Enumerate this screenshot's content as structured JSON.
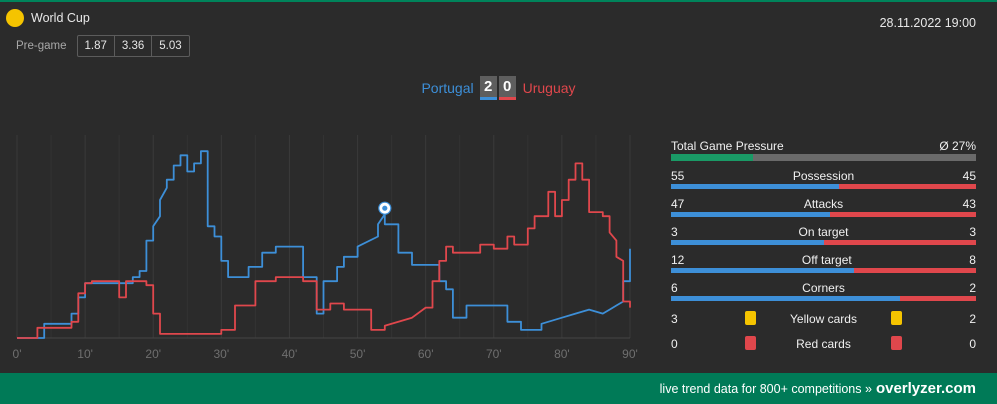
{
  "header": {
    "league": "World Cup",
    "datetime": "28.11.2022 19:00",
    "pregame_label": "Pre-game",
    "odds": [
      "1.87",
      "3.36",
      "5.03"
    ]
  },
  "match": {
    "home_team": "Portugal",
    "away_team": "Uruguay",
    "home_score": "2",
    "away_score": "0"
  },
  "chart_data": {
    "type": "line",
    "title": "",
    "xlabel": "",
    "ylabel": "",
    "x_ticks": [
      "0'",
      "10'",
      "20'",
      "30'",
      "40'",
      "50'",
      "60'",
      "70'",
      "80'",
      "90'"
    ],
    "xlim": [
      0,
      90
    ],
    "ylim": [
      0,
      100
    ],
    "grid": "vertical",
    "series": [
      {
        "name": "Portugal",
        "color": "#3d8fd8",
        "points": [
          [
            0,
            0
          ],
          [
            4,
            0
          ],
          [
            4,
            7
          ],
          [
            8,
            7
          ],
          [
            8,
            12
          ],
          [
            9,
            12
          ],
          [
            9,
            20
          ],
          [
            10,
            20
          ],
          [
            10,
            27
          ],
          [
            13,
            27
          ],
          [
            13,
            27
          ],
          [
            17,
            27
          ],
          [
            17,
            30
          ],
          [
            18,
            30
          ],
          [
            18,
            33
          ],
          [
            19,
            33
          ],
          [
            19,
            48
          ],
          [
            20,
            48
          ],
          [
            20,
            55
          ],
          [
            21,
            60
          ],
          [
            21,
            68
          ],
          [
            22,
            74
          ],
          [
            22,
            78
          ],
          [
            23,
            78
          ],
          [
            23,
            85
          ],
          [
            24,
            85
          ],
          [
            24,
            90
          ],
          [
            25,
            90
          ],
          [
            25,
            82
          ],
          [
            26,
            82
          ],
          [
            26,
            86
          ],
          [
            27,
            86
          ],
          [
            27,
            92
          ],
          [
            28,
            92
          ],
          [
            28,
            55
          ],
          [
            29,
            55
          ],
          [
            29,
            50
          ],
          [
            30,
            50
          ],
          [
            30,
            38
          ],
          [
            31,
            38
          ],
          [
            31,
            30
          ],
          [
            34,
            30
          ],
          [
            34,
            35
          ],
          [
            36,
            35
          ],
          [
            36,
            42
          ],
          [
            38,
            42
          ],
          [
            38,
            45
          ],
          [
            42,
            45
          ],
          [
            42,
            30
          ],
          [
            44,
            30
          ],
          [
            44,
            12
          ],
          [
            45,
            12
          ],
          [
            45,
            28
          ],
          [
            47,
            28
          ],
          [
            47,
            35
          ],
          [
            48,
            35
          ],
          [
            48,
            40
          ],
          [
            50,
            40
          ],
          [
            50,
            45
          ],
          [
            53,
            50
          ],
          [
            53,
            56
          ],
          [
            54,
            61
          ],
          [
            54,
            56
          ],
          [
            56,
            56
          ],
          [
            56,
            42
          ],
          [
            58,
            42
          ],
          [
            58,
            36
          ],
          [
            62,
            36
          ],
          [
            62,
            28
          ],
          [
            63,
            28
          ],
          [
            63,
            24
          ],
          [
            64,
            24
          ],
          [
            64,
            10
          ],
          [
            66,
            10
          ],
          [
            66,
            16
          ],
          [
            72,
            16
          ],
          [
            72,
            8
          ],
          [
            74,
            8
          ],
          [
            74,
            4
          ],
          [
            77,
            4
          ],
          [
            77,
            7
          ],
          [
            80,
            10
          ],
          [
            82,
            12
          ],
          [
            84,
            14
          ],
          [
            86,
            12
          ],
          [
            87,
            14
          ],
          [
            88,
            16
          ],
          [
            89,
            18
          ],
          [
            89,
            28
          ],
          [
            90,
            28
          ],
          [
            90,
            44
          ]
        ]
      },
      {
        "name": "Uruguay",
        "color": "#e0474c",
        "points": [
          [
            0,
            0
          ],
          [
            3,
            0
          ],
          [
            3,
            5
          ],
          [
            5,
            5
          ],
          [
            5,
            5
          ],
          [
            8,
            5
          ],
          [
            8,
            8
          ],
          [
            9,
            8
          ],
          [
            9,
            22
          ],
          [
            10,
            22
          ],
          [
            10,
            27
          ],
          [
            11,
            27
          ],
          [
            11,
            28
          ],
          [
            15,
            28
          ],
          [
            15,
            20
          ],
          [
            16,
            20
          ],
          [
            16,
            28
          ],
          [
            19,
            28
          ],
          [
            19,
            26
          ],
          [
            20,
            26
          ],
          [
            20,
            12
          ],
          [
            21,
            12
          ],
          [
            21,
            2
          ],
          [
            26,
            2
          ],
          [
            26,
            2
          ],
          [
            30,
            2
          ],
          [
            30,
            4
          ],
          [
            32,
            4
          ],
          [
            32,
            16
          ],
          [
            35,
            16
          ],
          [
            35,
            28
          ],
          [
            38,
            28
          ],
          [
            38,
            30
          ],
          [
            42,
            30
          ],
          [
            42,
            28
          ],
          [
            44,
            28
          ],
          [
            44,
            14
          ],
          [
            46,
            14
          ],
          [
            46,
            17
          ],
          [
            48,
            17
          ],
          [
            48,
            14
          ],
          [
            52,
            14
          ],
          [
            52,
            4
          ],
          [
            54,
            4
          ],
          [
            54,
            6
          ],
          [
            58,
            10
          ],
          [
            60,
            15
          ],
          [
            61,
            15
          ],
          [
            61,
            28
          ],
          [
            62,
            28
          ],
          [
            62,
            38
          ],
          [
            63,
            38
          ],
          [
            63,
            45
          ],
          [
            64,
            45
          ],
          [
            64,
            42
          ],
          [
            68,
            42
          ],
          [
            68,
            46
          ],
          [
            70,
            46
          ],
          [
            70,
            44
          ],
          [
            72,
            44
          ],
          [
            72,
            50
          ],
          [
            73,
            50
          ],
          [
            73,
            46
          ],
          [
            75,
            46
          ],
          [
            75,
            54
          ],
          [
            76,
            54
          ],
          [
            76,
            60
          ],
          [
            78,
            60
          ],
          [
            78,
            72
          ],
          [
            79,
            72
          ],
          [
            79,
            60
          ],
          [
            80,
            60
          ],
          [
            80,
            68
          ],
          [
            81,
            68
          ],
          [
            81,
            78
          ],
          [
            82,
            78
          ],
          [
            82,
            86
          ],
          [
            83,
            86
          ],
          [
            83,
            78
          ],
          [
            84,
            78
          ],
          [
            84,
            62
          ],
          [
            86,
            62
          ],
          [
            86,
            60
          ],
          [
            87,
            60
          ],
          [
            87,
            52
          ],
          [
            88,
            48
          ],
          [
            88,
            40
          ],
          [
            89,
            38
          ],
          [
            89,
            18
          ],
          [
            90,
            18
          ],
          [
            90,
            15
          ]
        ]
      }
    ],
    "events": [
      {
        "type": "goal",
        "minute": 54,
        "value": 61
      }
    ]
  },
  "stats": {
    "pressure_label": "Total Game Pressure",
    "pressure_value": "Ø 27%",
    "pressure_fraction": 0.27,
    "rows": [
      {
        "label": "Possession",
        "home": "55",
        "away": "45"
      },
      {
        "label": "Attacks",
        "home": "47",
        "away": "43"
      },
      {
        "label": "On target",
        "home": "3",
        "away": "3"
      },
      {
        "label": "Off target",
        "home": "12",
        "away": "8"
      },
      {
        "label": "Corners",
        "home": "6",
        "away": "2"
      }
    ],
    "cards": [
      {
        "label": "Yellow cards",
        "home": "3",
        "away": "2",
        "color": "#f5c400"
      },
      {
        "label": "Red cards",
        "home": "0",
        "away": "0",
        "color": "#e0474c"
      }
    ]
  },
  "footer": {
    "text": "live trend data for 800+ competitions »",
    "brand": "overlyzer.com"
  },
  "colors": {
    "home": "#3d8fd8",
    "away": "#e0474c",
    "accent": "#007a57"
  }
}
